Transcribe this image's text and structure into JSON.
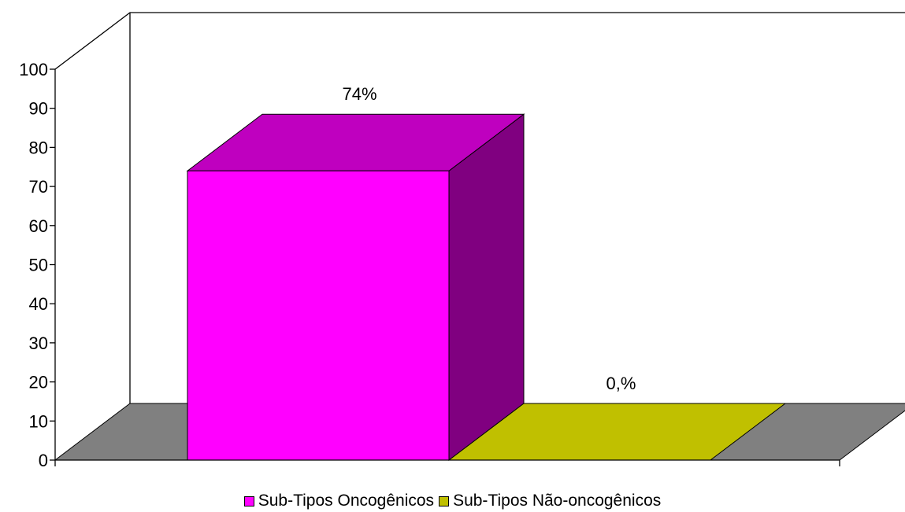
{
  "chart_data": {
    "type": "bar",
    "title": "",
    "xlabel": "",
    "ylabel": "",
    "ylim": [
      0,
      100
    ],
    "yticks": [
      "0",
      "10",
      "20",
      "30",
      "40",
      "50",
      "60",
      "70",
      "80",
      "90",
      "100"
    ],
    "grid": false,
    "legend_position": "bottom",
    "series": [
      {
        "name": "Sub-Tipos Oncogênicos",
        "value": 74,
        "label": "74%",
        "color": "#ff00ff"
      },
      {
        "name": "Sub-Tipos Não-oncogênicos",
        "value": 0,
        "label": "0,%",
        "color": "#c0c000"
      }
    ],
    "colors": {
      "floor": "#808080",
      "axis": "#000000"
    }
  }
}
